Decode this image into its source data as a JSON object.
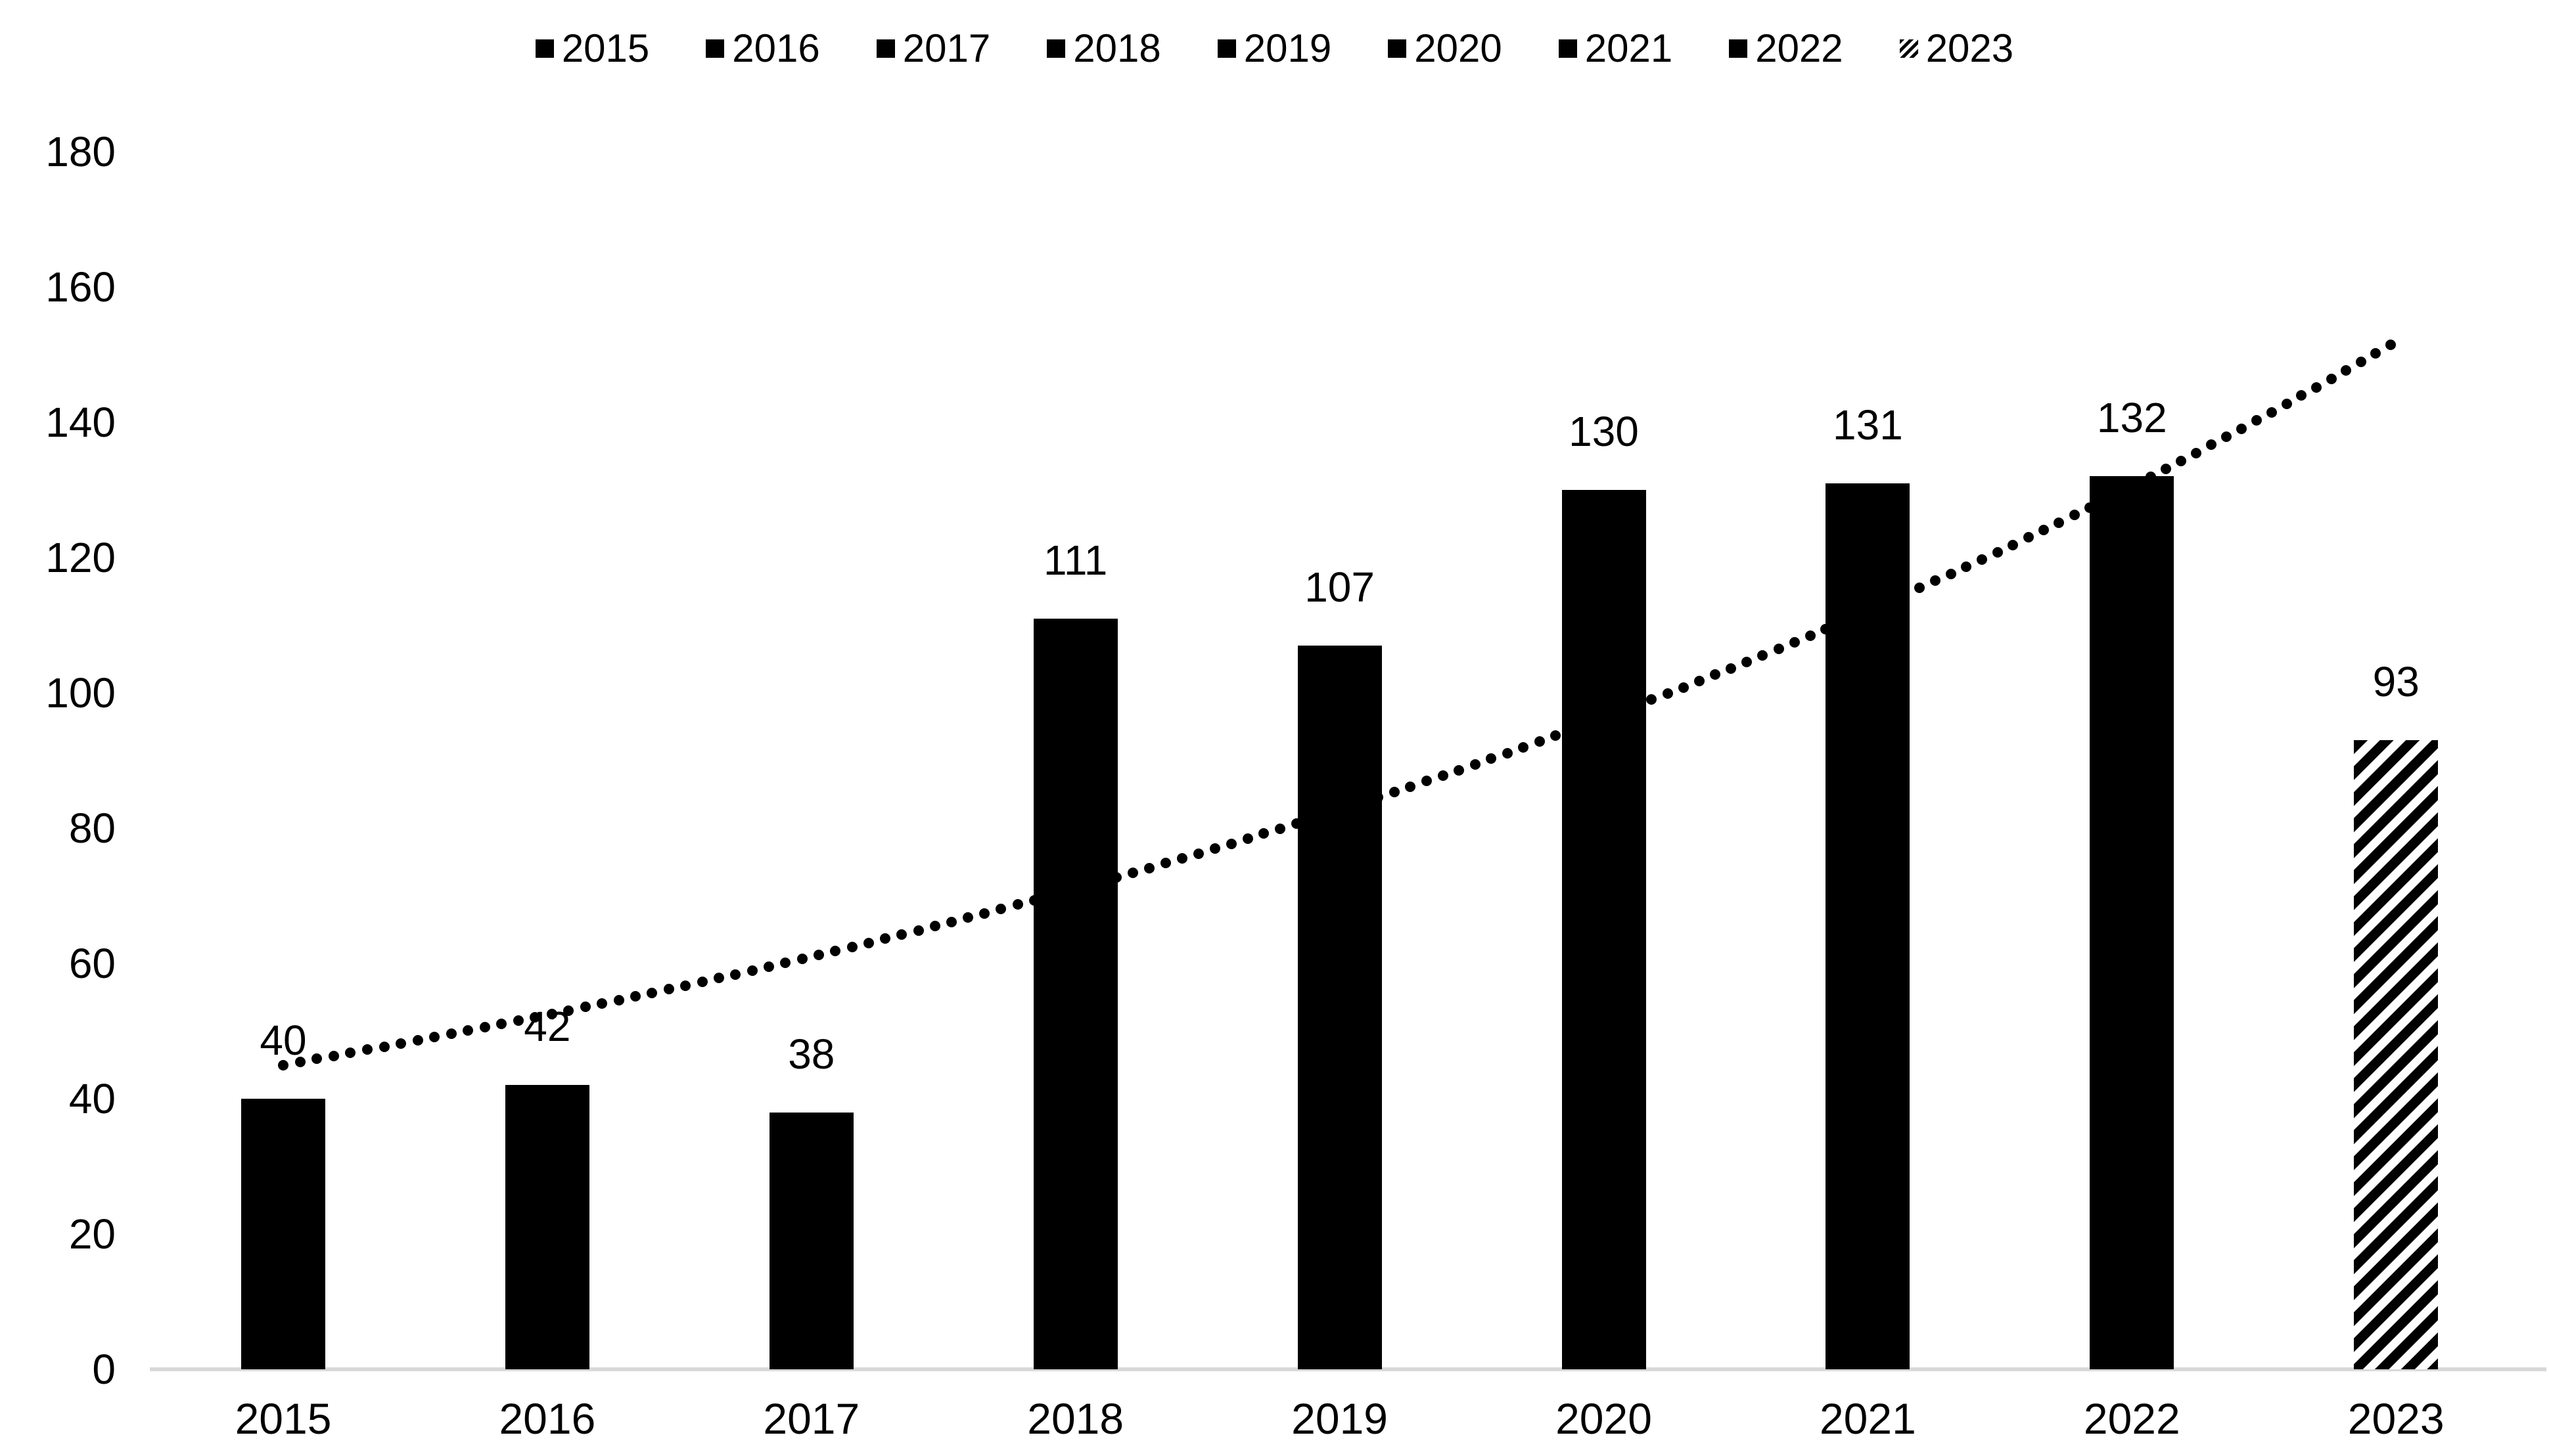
{
  "page": {
    "background": "#ffffff"
  },
  "chart_data": {
    "type": "bar",
    "title": "",
    "xlabel": "",
    "ylabel": "",
    "categories": [
      "2015",
      "2016",
      "2017",
      "2018",
      "2019",
      "2020",
      "2021",
      "2022",
      "2023"
    ],
    "values": [
      40,
      42,
      38,
      111,
      107,
      130,
      131,
      132,
      93
    ],
    "data_labels": [
      "40",
      "42",
      "38",
      "111",
      "107",
      "130",
      "131",
      "132",
      "93"
    ],
    "bar_fill_styles": [
      "solid",
      "solid",
      "solid",
      "solid",
      "solid",
      "solid",
      "solid",
      "solid",
      "hatched"
    ],
    "legend": {
      "position": "top",
      "entries": [
        {
          "label": "2015",
          "marker": "solid"
        },
        {
          "label": "2016",
          "marker": "solid"
        },
        {
          "label": "2017",
          "marker": "solid"
        },
        {
          "label": "2018",
          "marker": "solid"
        },
        {
          "label": "2019",
          "marker": "solid"
        },
        {
          "label": "2020",
          "marker": "solid"
        },
        {
          "label": "2021",
          "marker": "solid"
        },
        {
          "label": "2022",
          "marker": "solid"
        },
        {
          "label": "2023",
          "marker": "hatched"
        }
      ]
    },
    "y_axis": {
      "min": 0,
      "max": 180,
      "step": 20,
      "tick_labels": [
        "0",
        "20",
        "40",
        "60",
        "80",
        "100",
        "120",
        "140",
        "160",
        "180"
      ]
    },
    "x_axis": {
      "tick_labels": [
        "2015",
        "2016",
        "2017",
        "2018",
        "2019",
        "2020",
        "2021",
        "2022",
        "2023"
      ]
    },
    "trendline": {
      "type": "exponential",
      "line_style": "dotted",
      "start_value": 45,
      "end_value": 152
    },
    "grid": "off",
    "colors": {
      "bar": "#000000",
      "text": "#000000",
      "baseline": "#d9d9d9",
      "background": "#ffffff"
    }
  }
}
